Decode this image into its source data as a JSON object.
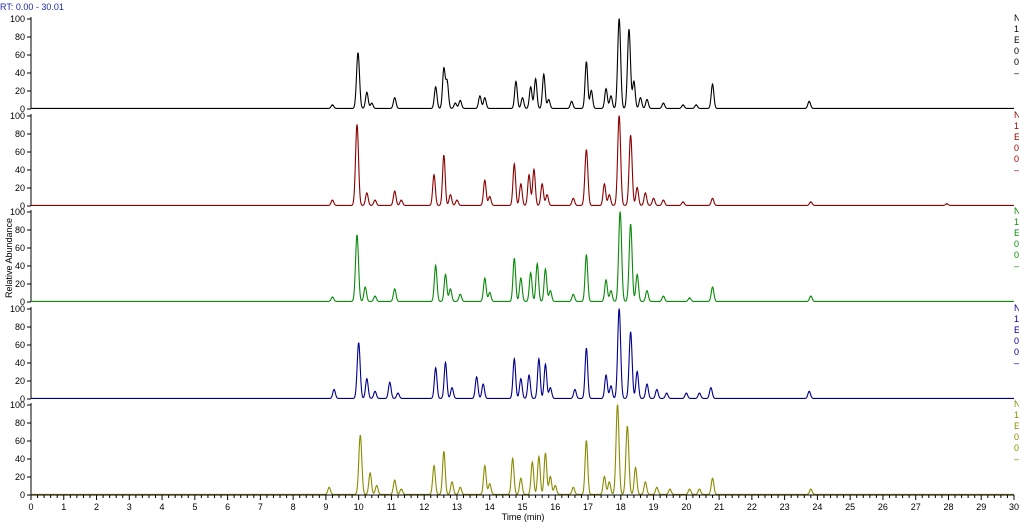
{
  "header": {
    "rt_range": "RT: 0.00 - 30.01"
  },
  "chart_data": {
    "type": "line",
    "xlabel": "Time (min)",
    "ylabel": "Relative Abundance",
    "xlim": [
      0,
      30
    ],
    "x_ticks": [
      "0",
      "1",
      "2",
      "3",
      "4",
      "5",
      "6",
      "7",
      "8",
      "9",
      "10",
      "11",
      "12",
      "13",
      "14",
      "15",
      "16",
      "17",
      "18",
      "19",
      "20",
      "21",
      "22",
      "23",
      "24",
      "25",
      "26",
      "27",
      "28",
      "29",
      "30"
    ],
    "y_ticks": [
      "0",
      "20",
      "40",
      "60",
      "80",
      "100"
    ],
    "ylim": [
      0,
      100
    ],
    "grid": false,
    "panels": [
      {
        "color": "#000000",
        "edge_labels": [
          "N",
          "1",
          "E",
          "0",
          "0",
          "—"
        ],
        "peaks": [
          [
            9.2,
            4
          ],
          [
            9.98,
            62
          ],
          [
            10.25,
            18
          ],
          [
            10.4,
            6
          ],
          [
            11.1,
            12
          ],
          [
            12.35,
            24
          ],
          [
            12.6,
            44
          ],
          [
            12.7,
            30
          ],
          [
            12.95,
            6
          ],
          [
            13.1,
            9
          ],
          [
            13.7,
            14
          ],
          [
            13.85,
            12
          ],
          [
            14.8,
            30
          ],
          [
            15.0,
            12
          ],
          [
            15.25,
            24
          ],
          [
            15.4,
            33
          ],
          [
            15.65,
            38
          ],
          [
            15.8,
            10
          ],
          [
            16.5,
            8
          ],
          [
            16.95,
            52
          ],
          [
            17.1,
            20
          ],
          [
            17.55,
            22
          ],
          [
            17.7,
            14
          ],
          [
            17.95,
            100
          ],
          [
            18.25,
            88
          ],
          [
            18.4,
            30
          ],
          [
            18.6,
            12
          ],
          [
            18.8,
            10
          ],
          [
            19.3,
            6
          ],
          [
            19.9,
            4
          ],
          [
            20.3,
            4
          ],
          [
            20.8,
            27
          ],
          [
            23.75,
            8
          ]
        ]
      },
      {
        "color": "#8b0000",
        "edge_labels": [
          "N",
          "1",
          "E",
          "0",
          "0",
          "—"
        ],
        "peaks": [
          [
            9.2,
            6
          ],
          [
            9.95,
            90
          ],
          [
            10.25,
            14
          ],
          [
            10.5,
            6
          ],
          [
            11.1,
            16
          ],
          [
            11.3,
            6
          ],
          [
            12.3,
            34
          ],
          [
            12.6,
            56
          ],
          [
            12.8,
            12
          ],
          [
            13.0,
            6
          ],
          [
            13.85,
            28
          ],
          [
            14.0,
            10
          ],
          [
            14.75,
            46
          ],
          [
            14.95,
            24
          ],
          [
            15.2,
            34
          ],
          [
            15.35,
            40
          ],
          [
            15.6,
            24
          ],
          [
            15.75,
            12
          ],
          [
            16.55,
            8
          ],
          [
            16.95,
            62
          ],
          [
            17.5,
            24
          ],
          [
            17.65,
            12
          ],
          [
            17.95,
            100
          ],
          [
            18.3,
            78
          ],
          [
            18.5,
            20
          ],
          [
            18.75,
            14
          ],
          [
            19.0,
            8
          ],
          [
            19.3,
            6
          ],
          [
            19.9,
            4
          ],
          [
            20.8,
            8
          ],
          [
            23.8,
            4
          ],
          [
            27.95,
            2
          ]
        ]
      },
      {
        "color": "#0a8a0a",
        "edge_labels": [
          "N",
          "1",
          "E",
          "0",
          "0",
          "—"
        ],
        "peaks": [
          [
            9.2,
            5
          ],
          [
            9.95,
            74
          ],
          [
            10.2,
            16
          ],
          [
            10.5,
            6
          ],
          [
            11.1,
            14
          ],
          [
            12.35,
            40
          ],
          [
            12.65,
            30
          ],
          [
            12.8,
            14
          ],
          [
            13.1,
            8
          ],
          [
            13.85,
            26
          ],
          [
            14.0,
            10
          ],
          [
            14.75,
            48
          ],
          [
            14.95,
            26
          ],
          [
            15.25,
            32
          ],
          [
            15.45,
            42
          ],
          [
            15.7,
            36
          ],
          [
            15.85,
            12
          ],
          [
            16.55,
            8
          ],
          [
            16.95,
            52
          ],
          [
            17.55,
            24
          ],
          [
            17.7,
            12
          ],
          [
            17.98,
            100
          ],
          [
            18.3,
            86
          ],
          [
            18.5,
            30
          ],
          [
            18.8,
            12
          ],
          [
            19.3,
            6
          ],
          [
            20.1,
            4
          ],
          [
            20.8,
            16
          ],
          [
            23.8,
            6
          ]
        ]
      },
      {
        "color": "#00008b",
        "edge_labels": [
          "N",
          "1",
          "E",
          "0",
          "0",
          "—"
        ],
        "peaks": [
          [
            9.25,
            10
          ],
          [
            10.0,
            62
          ],
          [
            10.25,
            22
          ],
          [
            10.5,
            8
          ],
          [
            10.95,
            18
          ],
          [
            11.2,
            6
          ],
          [
            12.35,
            34
          ],
          [
            12.65,
            40
          ],
          [
            12.85,
            12
          ],
          [
            13.6,
            24
          ],
          [
            13.8,
            16
          ],
          [
            14.75,
            44
          ],
          [
            14.95,
            22
          ],
          [
            15.2,
            26
          ],
          [
            15.5,
            44
          ],
          [
            15.7,
            38
          ],
          [
            15.85,
            12
          ],
          [
            16.6,
            10
          ],
          [
            16.95,
            56
          ],
          [
            17.55,
            26
          ],
          [
            17.7,
            14
          ],
          [
            17.95,
            100
          ],
          [
            18.3,
            74
          ],
          [
            18.5,
            30
          ],
          [
            18.8,
            16
          ],
          [
            19.1,
            10
          ],
          [
            19.4,
            6
          ],
          [
            20.0,
            6
          ],
          [
            20.4,
            6
          ],
          [
            20.75,
            12
          ],
          [
            23.75,
            8
          ]
        ]
      },
      {
        "color": "#8b8b00",
        "edge_labels": [
          "N",
          "1",
          "E",
          "0",
          "0",
          "—"
        ],
        "peaks": [
          [
            9.1,
            8
          ],
          [
            10.05,
            66
          ],
          [
            10.35,
            24
          ],
          [
            10.55,
            10
          ],
          [
            11.1,
            16
          ],
          [
            11.3,
            6
          ],
          [
            12.3,
            32
          ],
          [
            12.6,
            48
          ],
          [
            12.85,
            14
          ],
          [
            13.1,
            8
          ],
          [
            13.85,
            32
          ],
          [
            14.0,
            12
          ],
          [
            14.7,
            40
          ],
          [
            14.95,
            18
          ],
          [
            15.3,
            36
          ],
          [
            15.5,
            42
          ],
          [
            15.7,
            46
          ],
          [
            15.85,
            20
          ],
          [
            16.0,
            10
          ],
          [
            16.55,
            8
          ],
          [
            16.95,
            60
          ],
          [
            17.5,
            20
          ],
          [
            17.65,
            14
          ],
          [
            17.9,
            100
          ],
          [
            18.2,
            76
          ],
          [
            18.45,
            30
          ],
          [
            18.75,
            14
          ],
          [
            19.1,
            8
          ],
          [
            19.5,
            6
          ],
          [
            20.1,
            6
          ],
          [
            20.4,
            6
          ],
          [
            20.8,
            18
          ],
          [
            23.8,
            6
          ]
        ]
      }
    ]
  }
}
